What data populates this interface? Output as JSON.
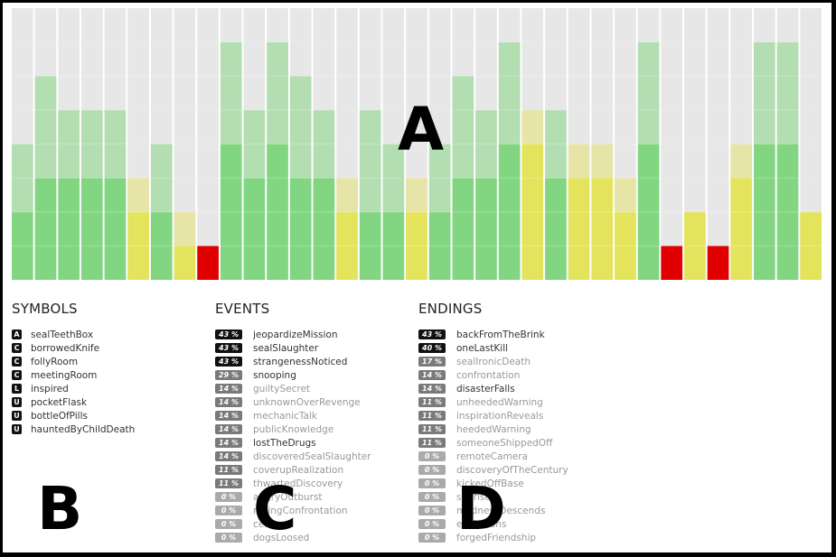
{
  "chart_data": {
    "type": "bar",
    "description_note": "",
    "ymax": 8,
    "colors": {
      "green": "#82d682",
      "green_light": "#b2deb2",
      "yellow": "#e4e45c",
      "yellow_light": "#e6e4a6",
      "red": "#e00000",
      "empty": "#e7e7e7",
      "gridline": "#ffffff"
    },
    "bars": [
      {
        "color": "green",
        "solid": 2,
        "light": 2
      },
      {
        "color": "green",
        "solid": 3,
        "light": 3
      },
      {
        "color": "green",
        "solid": 3,
        "light": 2
      },
      {
        "color": "green",
        "solid": 3,
        "light": 2
      },
      {
        "color": "green",
        "solid": 3,
        "light": 2
      },
      {
        "color": "yellow",
        "solid": 2,
        "light": 1
      },
      {
        "color": "green",
        "solid": 2,
        "light": 2
      },
      {
        "color": "yellow",
        "solid": 1,
        "light": 1
      },
      {
        "color": "red",
        "solid": 1,
        "light": 0
      },
      {
        "color": "green",
        "solid": 4,
        "light": 3
      },
      {
        "color": "green",
        "solid": 3,
        "light": 2
      },
      {
        "color": "green",
        "solid": 4,
        "light": 3
      },
      {
        "color": "green",
        "solid": 3,
        "light": 3
      },
      {
        "color": "green",
        "solid": 3,
        "light": 2
      },
      {
        "color": "yellow",
        "solid": 2,
        "light": 1
      },
      {
        "color": "green",
        "solid": 2,
        "light": 3
      },
      {
        "color": "green",
        "solid": 2,
        "light": 2
      },
      {
        "color": "yellow",
        "solid": 2,
        "light": 1
      },
      {
        "color": "green",
        "solid": 2,
        "light": 2
      },
      {
        "color": "green",
        "solid": 3,
        "light": 3
      },
      {
        "color": "green",
        "solid": 3,
        "light": 2
      },
      {
        "color": "green",
        "solid": 4,
        "light": 3
      },
      {
        "color": "yellow",
        "solid": 4,
        "light": 1
      },
      {
        "color": "green",
        "solid": 3,
        "light": 2
      },
      {
        "color": "yellow",
        "solid": 3,
        "light": 1
      },
      {
        "color": "yellow",
        "solid": 3,
        "light": 1
      },
      {
        "color": "yellow",
        "solid": 2,
        "light": 1
      },
      {
        "color": "green",
        "solid": 4,
        "light": 3
      },
      {
        "color": "red",
        "solid": 1,
        "light": 0
      },
      {
        "color": "yellow",
        "solid": 2,
        "light": 0
      },
      {
        "color": "red",
        "solid": 1,
        "light": 0
      },
      {
        "color": "yellow",
        "solid": 3,
        "light": 1
      },
      {
        "color": "green",
        "solid": 4,
        "light": 3
      },
      {
        "color": "green",
        "solid": 4,
        "light": 3
      },
      {
        "color": "yellow",
        "solid": 2,
        "light": 0
      }
    ]
  },
  "overlay_labels": {
    "a": "A",
    "b": "B",
    "c": "C",
    "d": "D"
  },
  "symbols": {
    "heading": "SYMBOLS",
    "items": [
      {
        "badge": "A",
        "label": "sealTeethBox"
      },
      {
        "badge": "C",
        "label": "borrowedKnife"
      },
      {
        "badge": "C",
        "label": "follyRoom"
      },
      {
        "badge": "C",
        "label": "meetingRoom"
      },
      {
        "badge": "L",
        "label": "inspired"
      },
      {
        "badge": "U",
        "label": "pocketFlask"
      },
      {
        "badge": "U",
        "label": "bottleOfPills"
      },
      {
        "badge": "U",
        "label": "hauntedByChildDeath"
      }
    ]
  },
  "events": {
    "heading": "EVENTS",
    "items": [
      {
        "pct": "43 %",
        "label": "jeopardizeMission",
        "tone": "dark",
        "dim": false
      },
      {
        "pct": "43 %",
        "label": "sealSlaughter",
        "tone": "dark",
        "dim": false
      },
      {
        "pct": "43 %",
        "label": "strangenessNoticed",
        "tone": "dark",
        "dim": false
      },
      {
        "pct": "29 %",
        "label": "snooping",
        "tone": "mid",
        "dim": false
      },
      {
        "pct": "14 %",
        "label": "guiltySecret",
        "tone": "mid",
        "dim": true
      },
      {
        "pct": "14 %",
        "label": "unknownOverRevenge",
        "tone": "mid",
        "dim": true
      },
      {
        "pct": "14 %",
        "label": "mechanicTalk",
        "tone": "mid",
        "dim": true
      },
      {
        "pct": "14 %",
        "label": "publicKnowledge",
        "tone": "mid",
        "dim": true
      },
      {
        "pct": "14 %",
        "label": "lostTheDrugs",
        "tone": "mid",
        "dim": false
      },
      {
        "pct": "14 %",
        "label": "discoveredSealSlaughter",
        "tone": "mid",
        "dim": true
      },
      {
        "pct": "11 %",
        "label": "coverupRealization",
        "tone": "mid",
        "dim": true
      },
      {
        "pct": "11 %",
        "label": "thwartedDiscovery",
        "tone": "mid",
        "dim": true
      },
      {
        "pct": "0 %",
        "label": "angryOutburst",
        "tone": "light",
        "dim": true
      },
      {
        "pct": "0 %",
        "label": "rollingConfrontation",
        "tone": "light",
        "dim": true
      },
      {
        "pct": "0 %",
        "label": "ceiling",
        "tone": "light",
        "dim": true
      },
      {
        "pct": "0 %",
        "label": "dogsLoosed",
        "tone": "light",
        "dim": true
      }
    ]
  },
  "endings": {
    "heading": "ENDINGS",
    "items": [
      {
        "pct": "43 %",
        "label": "backFromTheBrink",
        "tone": "dark",
        "dim": false
      },
      {
        "pct": "40 %",
        "label": "oneLastKill",
        "tone": "dark",
        "dim": false
      },
      {
        "pct": "17 %",
        "label": "sealIronicDeath",
        "tone": "mid",
        "dim": true
      },
      {
        "pct": "14 %",
        "label": "confrontation",
        "tone": "mid",
        "dim": true
      },
      {
        "pct": "14 %",
        "label": "disasterFalls",
        "tone": "mid",
        "dim": false
      },
      {
        "pct": "11 %",
        "label": "unheededWarning",
        "tone": "mid",
        "dim": true
      },
      {
        "pct": "11 %",
        "label": "inspirationReveals",
        "tone": "mid",
        "dim": true
      },
      {
        "pct": "11 %",
        "label": "heededWarning",
        "tone": "mid",
        "dim": true
      },
      {
        "pct": "11 %",
        "label": "someoneShippedOff",
        "tone": "mid",
        "dim": true
      },
      {
        "pct": "0 %",
        "label": "remoteCamera",
        "tone": "light",
        "dim": true
      },
      {
        "pct": "0 %",
        "label": "discoveryOfTheCentury",
        "tone": "light",
        "dim": true
      },
      {
        "pct": "0 %",
        "label": "kickedOffBase",
        "tone": "light",
        "dim": true
      },
      {
        "pct": "0 %",
        "label": "sunrise",
        "tone": "light",
        "dim": true
      },
      {
        "pct": "0 %",
        "label": "madnessDescends",
        "tone": "light",
        "dim": true
      },
      {
        "pct": "0 %",
        "label": "explosions",
        "tone": "light",
        "dim": true
      },
      {
        "pct": "0 %",
        "label": "forgedFriendship",
        "tone": "light",
        "dim": true
      }
    ]
  }
}
